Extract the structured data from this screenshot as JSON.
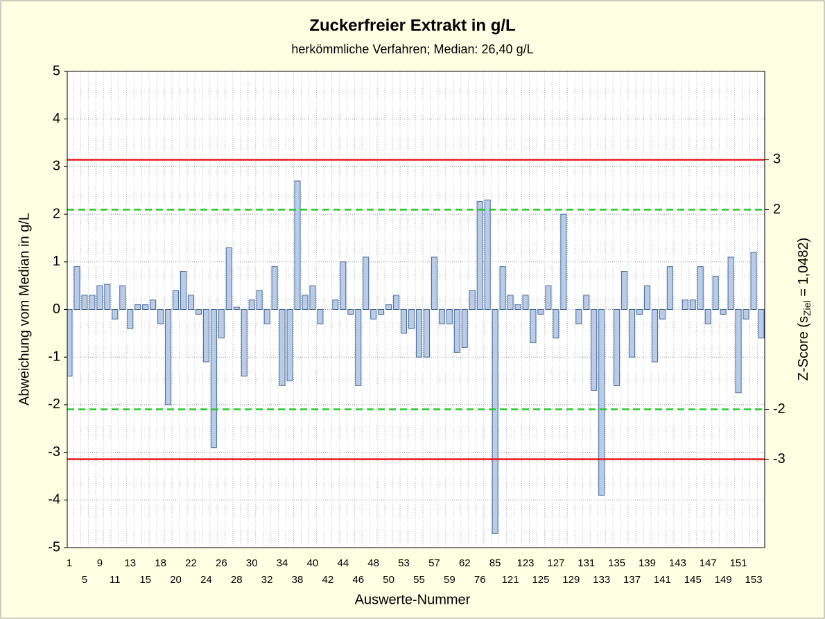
{
  "chart_data": {
    "type": "bar",
    "title": "Zuckerfreier Extrakt in g/L",
    "subtitle": "herkömmliche Verfahren; Median: 26,40 g/L",
    "xlabel": "Auswerte-Nummer",
    "ylabel": "Abweichung vom Median in g/L",
    "y2label_parts": [
      "Z-Score (s",
      "Ziel",
      " = 1,0482)"
    ],
    "categories": [
      1,
      null,
      5,
      null,
      9,
      null,
      11,
      null,
      13,
      null,
      15,
      null,
      18,
      null,
      20,
      null,
      22,
      null,
      24,
      null,
      26,
      null,
      28,
      null,
      30,
      null,
      32,
      null,
      34,
      null,
      38,
      null,
      40,
      null,
      42,
      null,
      44,
      null,
      46,
      null,
      48,
      null,
      50,
      null,
      53,
      null,
      55,
      null,
      57,
      null,
      59,
      null,
      62,
      null,
      76,
      null,
      85,
      null,
      121,
      null,
      123,
      null,
      125,
      null,
      127,
      null,
      129,
      null,
      131,
      null,
      133,
      null,
      135,
      null,
      137,
      null,
      139,
      null,
      141,
      null,
      143,
      null,
      145,
      null,
      147,
      null,
      149,
      null,
      151,
      null,
      153,
      null
    ],
    "values": [
      -1.4,
      0.9,
      0.3,
      0.3,
      0.5,
      0.53,
      -0.2,
      0.5,
      -0.4,
      0.1,
      0.1,
      0.2,
      -0.3,
      -2.0,
      0.4,
      0.8,
      0.3,
      -0.1,
      -1.1,
      -2.9,
      -0.6,
      1.3,
      0.05,
      -1.4,
      0.2,
      0.4,
      -0.3,
      0.9,
      -1.6,
      -1.5,
      2.7,
      0.3,
      0.5,
      -0.3,
      null,
      0.2,
      1.0,
      -0.1,
      -1.6,
      1.1,
      -0.2,
      -0.1,
      0.1,
      0.3,
      -0.5,
      -0.4,
      -1.0,
      -1.0,
      1.1,
      -0.3,
      -0.3,
      -0.9,
      -0.8,
      0.4,
      2.27,
      2.3,
      -4.7,
      0.9,
      0.3,
      0.1,
      0.3,
      -0.7,
      -0.1,
      0.5,
      -0.6,
      2.0,
      null,
      -0.3,
      0.3,
      -1.7,
      -3.9,
      null,
      -1.6,
      0.8,
      -1.0,
      -0.1,
      0.5,
      -1.1,
      -0.2,
      0.9,
      null,
      0.2,
      0.2,
      0.9,
      -0.3,
      0.7,
      -0.1,
      1.1,
      -1.75,
      -0.2,
      1.2,
      -0.6
    ],
    "color": "#b9cde8",
    "edge_color": "#4a6a9a",
    "ylim": [
      -5,
      5
    ],
    "yticks": [
      -5,
      -4,
      -3,
      -2,
      -1,
      0,
      1,
      2,
      3,
      4,
      5
    ],
    "y2lim": [
      -4.77,
      4.77
    ],
    "y2ticks": [
      -3,
      -2,
      2,
      3
    ],
    "reference_lines": [
      {
        "value": 3,
        "axis": "y2",
        "color": "#e8181c",
        "style": "solid"
      },
      {
        "value": -3,
        "axis": "y2",
        "color": "#e8181c",
        "style": "solid"
      },
      {
        "value": 2,
        "axis": "y2",
        "color": "#22cc22",
        "style": "dashed"
      },
      {
        "value": -2,
        "axis": "y2",
        "color": "#22cc22",
        "style": "dashed"
      }
    ],
    "grid": true
  }
}
